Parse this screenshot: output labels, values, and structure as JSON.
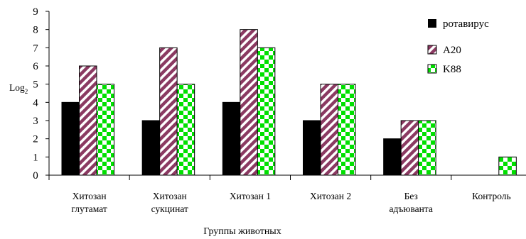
{
  "chart_data": {
    "type": "bar",
    "categories": [
      [
        "Хитозан",
        "глутамат"
      ],
      [
        "Хитозан",
        "сукцинат"
      ],
      [
        "Хитозан 1"
      ],
      [
        "Хитозан 2"
      ],
      [
        "Без",
        "адъюванта"
      ],
      [
        "Контроль"
      ]
    ],
    "series": [
      {
        "name": "ротавирус",
        "values": [
          4,
          3,
          4,
          3,
          2,
          0
        ],
        "pattern": "solid",
        "color": "#000000"
      },
      {
        "name": "A20",
        "values": [
          6,
          7,
          8,
          5,
          3,
          0
        ],
        "pattern": "diagonal-stripes",
        "color": "#8b3a62"
      },
      {
        "name": "K88",
        "values": [
          5,
          5,
          7,
          5,
          3,
          1
        ],
        "pattern": "checkerboard",
        "color": "#00e000"
      }
    ],
    "ylim": [
      0,
      9
    ],
    "yticks": [
      0,
      1,
      2,
      3,
      4,
      5,
      6,
      7,
      8,
      9
    ],
    "ylabel": "Log",
    "ylabel_sub": "2",
    "xlabel": "Группы животных",
    "grid": false,
    "legend_position": "top-right"
  }
}
